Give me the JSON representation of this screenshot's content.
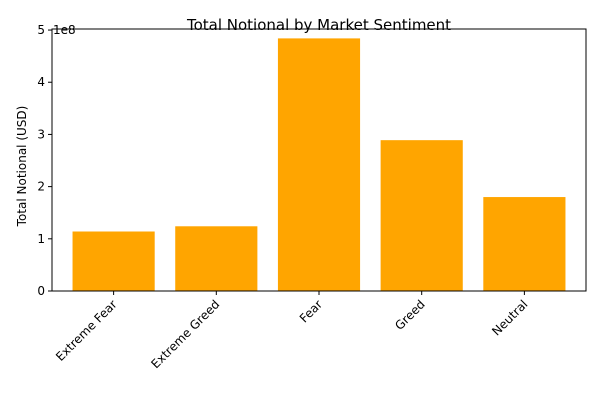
{
  "chart_data": {
    "type": "bar",
    "title": "Total Notional by Market Sentiment",
    "xlabel": "",
    "ylabel": "Total Notional (USD)",
    "offset_label": "1e8",
    "categories": [
      "Extreme Fear",
      "Extreme Greed",
      "Fear",
      "Greed",
      "Neutral"
    ],
    "values": [
      114000000,
      124000000,
      484000000,
      289000000,
      180000000
    ],
    "ylim": [
      0,
      502000000
    ],
    "yticks": [
      0,
      100000000,
      200000000,
      300000000,
      400000000,
      500000000
    ],
    "ytick_labels": [
      "0",
      "1",
      "2",
      "3",
      "4",
      "5"
    ],
    "xtick_rotation": 45,
    "grid": false,
    "legend": "none",
    "bar_color": "#ffa500"
  }
}
